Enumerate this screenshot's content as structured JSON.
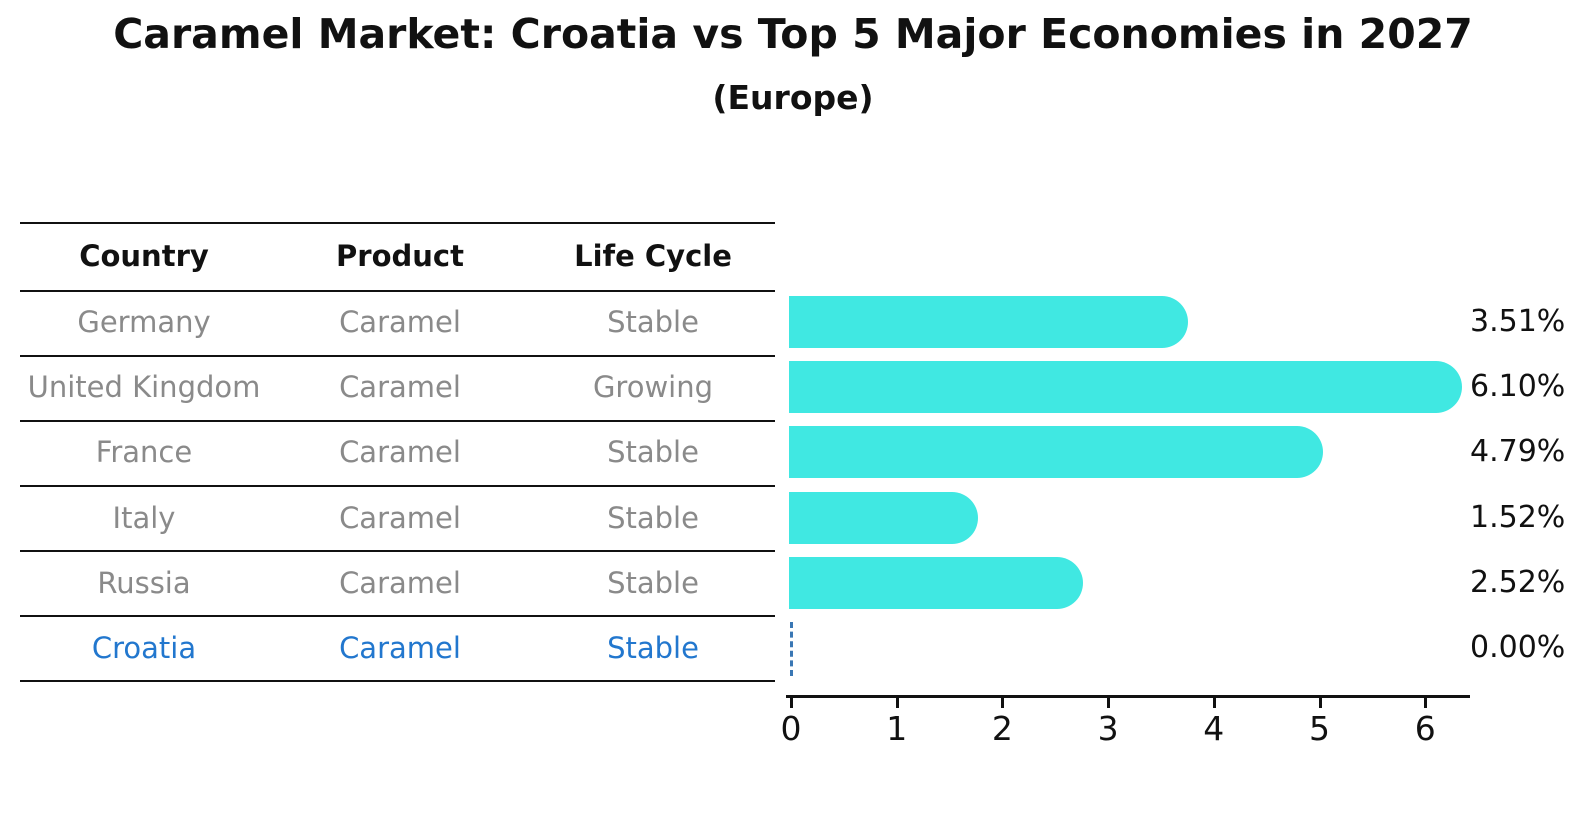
{
  "title": "Caramel Market: Croatia vs Top 5 Major Economies in 2027",
  "subtitle": "(Europe)",
  "table": {
    "headers": [
      "Country",
      "Product",
      "Life Cycle"
    ],
    "rows": [
      {
        "country": "Germany",
        "product": "Caramel",
        "life_cycle": "Stable",
        "highlight": false
      },
      {
        "country": "United Kingdom",
        "product": "Caramel",
        "life_cycle": "Growing",
        "highlight": false
      },
      {
        "country": "France",
        "product": "Caramel",
        "life_cycle": "Stable",
        "highlight": false
      },
      {
        "country": "Italy",
        "product": "Caramel",
        "life_cycle": "Stable",
        "highlight": false
      },
      {
        "country": "Russia",
        "product": "Caramel",
        "life_cycle": "Stable",
        "highlight": false
      },
      {
        "country": "Croatia",
        "product": "Caramel",
        "life_cycle": "Stable",
        "highlight": true
      }
    ]
  },
  "chart_data": {
    "type": "bar",
    "orientation": "horizontal",
    "title": "Caramel Market: Croatia vs Top 5 Major Economies in 2027 (Europe)",
    "categories": [
      "Germany",
      "United Kingdom",
      "France",
      "Italy",
      "Russia",
      "Croatia"
    ],
    "values": [
      3.51,
      6.1,
      4.79,
      1.52,
      2.52,
      0.0
    ],
    "value_labels": [
      "3.51%",
      "6.10%",
      "4.79%",
      "1.52%",
      "2.52%",
      "0.00%"
    ],
    "xlabel": "",
    "ylabel": "",
    "xlim": [
      0,
      6.4
    ],
    "x_ticks": [
      "0",
      "1",
      "2",
      "3",
      "4",
      "5",
      "6"
    ],
    "grid": false,
    "legend": "none",
    "bar_color": "#40e8e2",
    "zero_marker_color": "#3a77b4"
  },
  "colors": {
    "text_primary": "#111111",
    "text_muted": "#8a8a8a",
    "highlight_blue": "#2277ce",
    "bar": "#40e8e2"
  }
}
